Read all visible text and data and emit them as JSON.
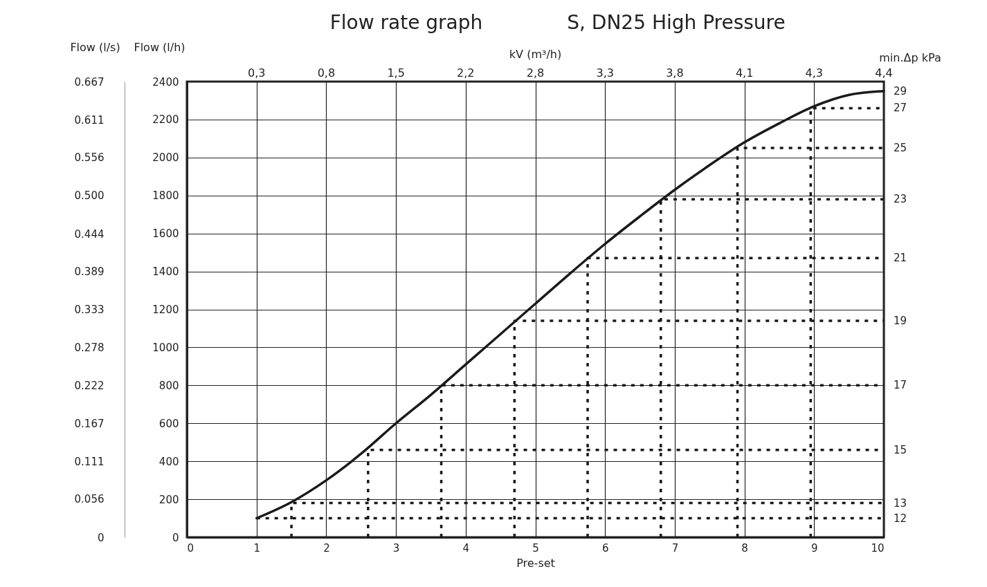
{
  "chart_data": {
    "type": "line",
    "title": "Flow rate graph",
    "subtitle": "S, DN25 High Pressure",
    "xlabel": "Pre-set",
    "ylabel": "Flow (l/h)",
    "y2label": "Flow (l/s)",
    "xlim": [
      0,
      10
    ],
    "xticks": [
      0,
      1,
      2,
      3,
      4,
      5,
      6,
      7,
      8,
      9,
      10
    ],
    "ylim": [
      0,
      2400
    ],
    "yticks": [
      0,
      200,
      400,
      600,
      800,
      1000,
      1200,
      1400,
      1600,
      1800,
      2000,
      2200,
      2400
    ],
    "y2lim": [
      0,
      0.667
    ],
    "y2ticks": [
      0,
      0.056,
      0.111,
      0.167,
      0.222,
      0.278,
      0.333,
      0.389,
      0.444,
      {
        "value": 0.5,
        "label": "0.500"
      },
      0.556,
      0.611,
      0.667
    ],
    "grid": true,
    "annotations": [
      "kV (m³/h)",
      "min.Δp kPa",
      "0,3",
      "0,8",
      "1,5",
      "2,2",
      "2,8",
      "3,3",
      "3,8",
      "4,1",
      "4,3",
      "4,4",
      {
        "text": "29",
        "x": 10,
        "y": 2350
      }
    ],
    "series": [
      {
        "color": "#1a1a1a",
        "line_style": "solid",
        "x": [
          1,
          1.5,
          2,
          2.5,
          3,
          3.5,
          4,
          4.5,
          5,
          5.5,
          6,
          6.5,
          7,
          7.5,
          8,
          8.5,
          9,
          9.5,
          10
        ],
        "values": [
          100,
          185,
          300,
          440,
          600,
          750,
          910,
          1070,
          1230,
          1390,
          1545,
          1690,
          1830,
          1960,
          2080,
          2180,
          2270,
          2330,
          2350
        ]
      },
      {
        "name": "12",
        "color": "#1a1a1a",
        "line_style": "dotted",
        "x": [
          1,
          10
        ],
        "values": [
          100,
          100
        ]
      },
      {
        "name": "13",
        "color": "#1a1a1a",
        "line_style": "dotted",
        "x": [
          1.5,
          1.5,
          10
        ],
        "values": [
          0,
          180,
          180
        ]
      },
      {
        "name": "15",
        "color": "#1a1a1a",
        "line_style": "dotted",
        "x": [
          2.6,
          2.6,
          10
        ],
        "values": [
          0,
          460,
          460
        ]
      },
      {
        "name": "17",
        "color": "#1a1a1a",
        "line_style": "dotted",
        "x": [
          3.65,
          3.65,
          10
        ],
        "values": [
          0,
          800,
          800
        ]
      },
      {
        "name": "19",
        "color": "#1a1a1a",
        "line_style": "dotted",
        "x": [
          4.7,
          4.7,
          10
        ],
        "values": [
          0,
          1140,
          1140
        ]
      },
      {
        "name": "21",
        "color": "#1a1a1a",
        "line_style": "dotted",
        "x": [
          5.75,
          5.75,
          10
        ],
        "values": [
          0,
          1470,
          1470
        ]
      },
      {
        "name": "23",
        "color": "#1a1a1a",
        "line_style": "dotted",
        "x": [
          6.8,
          6.8,
          10
        ],
        "values": [
          0,
          1780,
          1780
        ]
      },
      {
        "name": "25",
        "color": "#1a1a1a",
        "line_style": "dotted",
        "x": [
          7.9,
          7.9,
          10
        ],
        "values": [
          0,
          2050,
          2050
        ]
      },
      {
        "name": "27",
        "color": "#1a1a1a",
        "line_style": "dotted",
        "x": [
          8.95,
          8.95,
          10
        ],
        "values": [
          0,
          2260,
          2260
        ]
      }
    ]
  }
}
